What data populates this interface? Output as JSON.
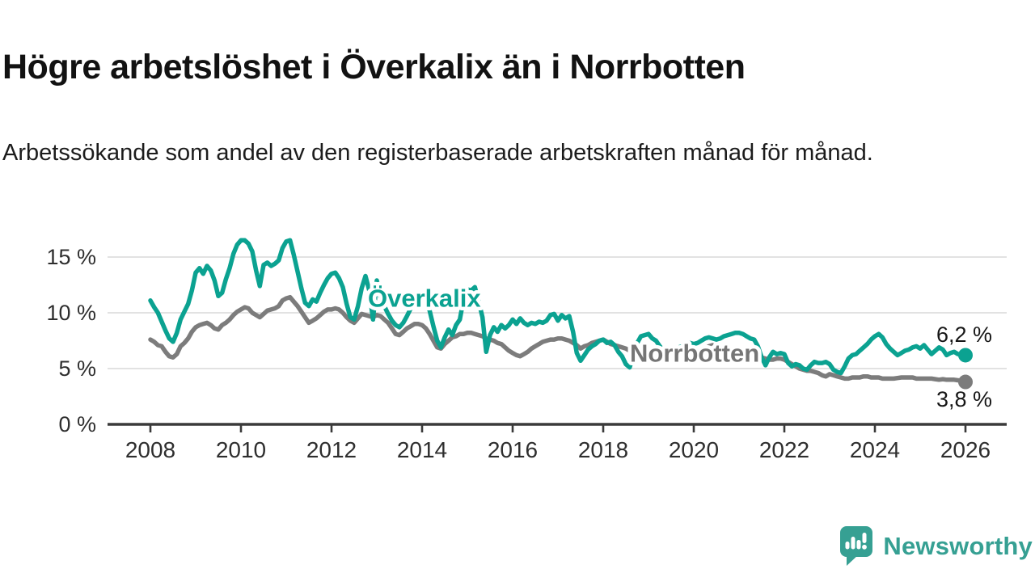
{
  "header": {
    "title": "Högre arbetslöshet i Överkalix än i Norrbotten",
    "subtitle": "Arbetssökande som andel av den registerbaserade arbetskraften månad för månad."
  },
  "footer": {
    "brand": "Newsworthy"
  },
  "colors": {
    "overkalix": "#0ba291",
    "norrbotten": "#7c7c7c",
    "norrbotten_label": "#757575",
    "axis": "#3a3a3a",
    "gridline": "#d9d9d9",
    "tick_label": "#2e2e2e",
    "end_label": "#161616",
    "brand_teal": "#36a093"
  },
  "chart_data": {
    "type": "line",
    "title": "Högre arbetslöshet i Överkalix än i Norrbotten",
    "unit": "%",
    "grid": "horizontal",
    "legend_position": "inline-labels",
    "x_axis": {
      "min": 2008,
      "max": 2026,
      "ticks": [
        2008,
        2010,
        2012,
        2014,
        2016,
        2018,
        2020,
        2022,
        2024,
        2026
      ],
      "tick_labels": [
        "2008",
        "2010",
        "2012",
        "2014",
        "2016",
        "2018",
        "2020",
        "2022",
        "2024",
        "2026"
      ]
    },
    "y_axis": {
      "min": 0,
      "max": 17,
      "ticks": [
        0,
        5,
        10,
        15
      ],
      "tick_labels": [
        "0 %",
        "5 %",
        "10 %",
        "15 %"
      ]
    },
    "series": [
      {
        "name": "Norrbotten",
        "color": "#7c7c7c",
        "label_color": "#757575",
        "end_label": "3,8 %",
        "end_label_side": "below",
        "label_anchor": {
          "t": 2020.02,
          "v": 5.6
        },
        "start_year": 2008,
        "monthly_values": [
          7.6,
          7.4,
          7.1,
          7.0,
          6.5,
          6.1,
          6.0,
          6.3,
          7.0,
          7.3,
          7.7,
          8.3,
          8.7,
          8.9,
          9.0,
          9.1,
          8.9,
          8.6,
          8.5,
          8.9,
          9.1,
          9.4,
          9.8,
          10.1,
          10.3,
          10.5,
          10.4,
          10.0,
          9.8,
          9.6,
          9.9,
          10.2,
          10.3,
          10.4,
          10.6,
          11.1,
          11.3,
          11.4,
          11.0,
          10.6,
          10.1,
          9.6,
          9.1,
          9.3,
          9.5,
          9.8,
          10.1,
          10.3,
          10.3,
          10.4,
          10.3,
          10.0,
          9.6,
          9.3,
          9.1,
          9.5,
          9.9,
          9.8,
          9.7,
          9.6,
          9.8,
          9.7,
          9.4,
          9.1,
          8.6,
          8.1,
          8.0,
          8.3,
          8.6,
          8.8,
          9.0,
          9.0,
          8.9,
          8.6,
          8.1,
          7.5,
          6.9,
          6.8,
          7.2,
          7.5,
          7.8,
          7.9,
          8.1,
          8.1,
          8.2,
          8.2,
          8.1,
          8.0,
          7.9,
          7.7,
          7.6,
          7.5,
          7.3,
          7.2,
          6.9,
          6.6,
          6.4,
          6.2,
          6.1,
          6.3,
          6.5,
          6.8,
          7.0,
          7.2,
          7.4,
          7.5,
          7.6,
          7.6,
          7.7,
          7.7,
          7.6,
          7.5,
          7.3,
          7.1,
          6.8,
          7.0,
          7.1,
          7.3,
          7.4,
          7.5,
          7.6,
          7.4,
          7.2,
          7.1,
          7.0,
          6.9,
          6.8,
          6.6,
          6.5,
          6.4,
          6.4,
          6.3,
          6.3,
          6.2,
          6.1,
          6.0,
          6.0,
          5.9,
          5.9,
          6.0,
          6.0,
          6.1,
          6.1,
          6.2,
          6.2,
          6.3,
          6.5,
          6.8,
          7.0,
          7.1,
          7.0,
          6.9,
          6.8,
          6.7,
          6.6,
          6.5,
          6.4,
          6.3,
          6.2,
          6.1,
          6.1,
          6.0,
          6.0,
          5.9,
          5.8,
          5.8,
          5.9,
          5.9,
          5.8,
          5.6,
          5.4,
          5.2,
          5.0,
          4.9,
          4.8,
          4.8,
          4.7,
          4.6,
          4.4,
          4.3,
          4.5,
          4.4,
          4.3,
          4.2,
          4.1,
          4.1,
          4.2,
          4.2,
          4.2,
          4.3,
          4.3,
          4.2,
          4.2,
          4.2,
          4.1,
          4.1,
          4.1,
          4.1,
          4.15,
          4.2,
          4.2,
          4.2,
          4.2,
          4.1,
          4.1,
          4.1,
          4.1,
          4.1,
          4.05,
          4.0,
          4.05,
          4.0,
          4.0,
          4.0,
          3.95,
          3.9,
          3.8
        ]
      },
      {
        "name": "Överkalix",
        "color": "#0ba291",
        "label_color": "#0ba291",
        "end_label": "6,2 %",
        "end_label_side": "above",
        "label_anchor": {
          "t": 2014.05,
          "v": 10.55
        },
        "start_year": 2008,
        "monthly_values": [
          11.1,
          10.5,
          10.0,
          9.2,
          8.4,
          7.7,
          7.4,
          8.2,
          9.4,
          10.1,
          10.8,
          12.0,
          13.6,
          14.0,
          13.5,
          14.2,
          13.8,
          12.9,
          11.5,
          11.8,
          13.0,
          14.0,
          15.3,
          16.1,
          16.5,
          16.5,
          16.2,
          15.5,
          13.8,
          12.4,
          14.3,
          14.5,
          14.2,
          14.4,
          14.7,
          15.8,
          16.4,
          16.5,
          15.2,
          13.7,
          12.2,
          10.9,
          10.6,
          11.2,
          11.0,
          11.8,
          12.5,
          13.1,
          13.5,
          13.6,
          13.1,
          12.3,
          10.8,
          9.6,
          9.4,
          10.6,
          12.2,
          13.3,
          12.0,
          9.4,
          12.9,
          11.5,
          10.6,
          9.9,
          9.3,
          8.9,
          8.7,
          9.1,
          9.7,
          10.4,
          11.0,
          11.4,
          11.3,
          11.0,
          10.2,
          8.8,
          7.5,
          6.9,
          7.8,
          8.5,
          8.0,
          8.9,
          9.4,
          11.2,
          12.1,
          12.0,
          12.3,
          11.0,
          9.6,
          6.5,
          8.0,
          8.7,
          8.3,
          8.9,
          8.6,
          8.9,
          9.4,
          9.0,
          9.5,
          9.1,
          8.9,
          9.1,
          9.0,
          9.2,
          9.1,
          9.3,
          9.8,
          9.9,
          9.3,
          9.8,
          9.5,
          9.7,
          8.3,
          6.4,
          5.7,
          6.2,
          6.7,
          7.0,
          7.2,
          7.5,
          7.6,
          7.3,
          7.4,
          7.1,
          6.5,
          6.1,
          5.4,
          5.1,
          6.2,
          7.3,
          7.9,
          8.0,
          8.1,
          7.7,
          7.5,
          7.0,
          6.6,
          6.3,
          6.4,
          6.6,
          6.9,
          7.0,
          7.2,
          7.3,
          7.2,
          7.3,
          7.5,
          7.7,
          7.8,
          7.7,
          7.6,
          7.7,
          7.9,
          8.0,
          8.1,
          8.2,
          8.2,
          8.1,
          7.9,
          7.7,
          7.6,
          7.0,
          6.0,
          5.3,
          6.0,
          6.5,
          6.3,
          6.4,
          6.3,
          5.5,
          5.2,
          5.4,
          5.3,
          5.0,
          4.9,
          5.3,
          5.6,
          5.5,
          5.5,
          5.6,
          5.4,
          4.9,
          4.7,
          4.6,
          5.2,
          5.9,
          6.2,
          6.3,
          6.6,
          6.9,
          7.2,
          7.6,
          7.9,
          8.1,
          7.8,
          7.2,
          6.8,
          6.5,
          6.2,
          6.4,
          6.6,
          6.7,
          6.9,
          7.0,
          6.8,
          7.1,
          6.7,
          6.3,
          6.6,
          6.9,
          6.7,
          6.2,
          6.4,
          6.5,
          6.3,
          6.3,
          6.2
        ]
      }
    ]
  }
}
